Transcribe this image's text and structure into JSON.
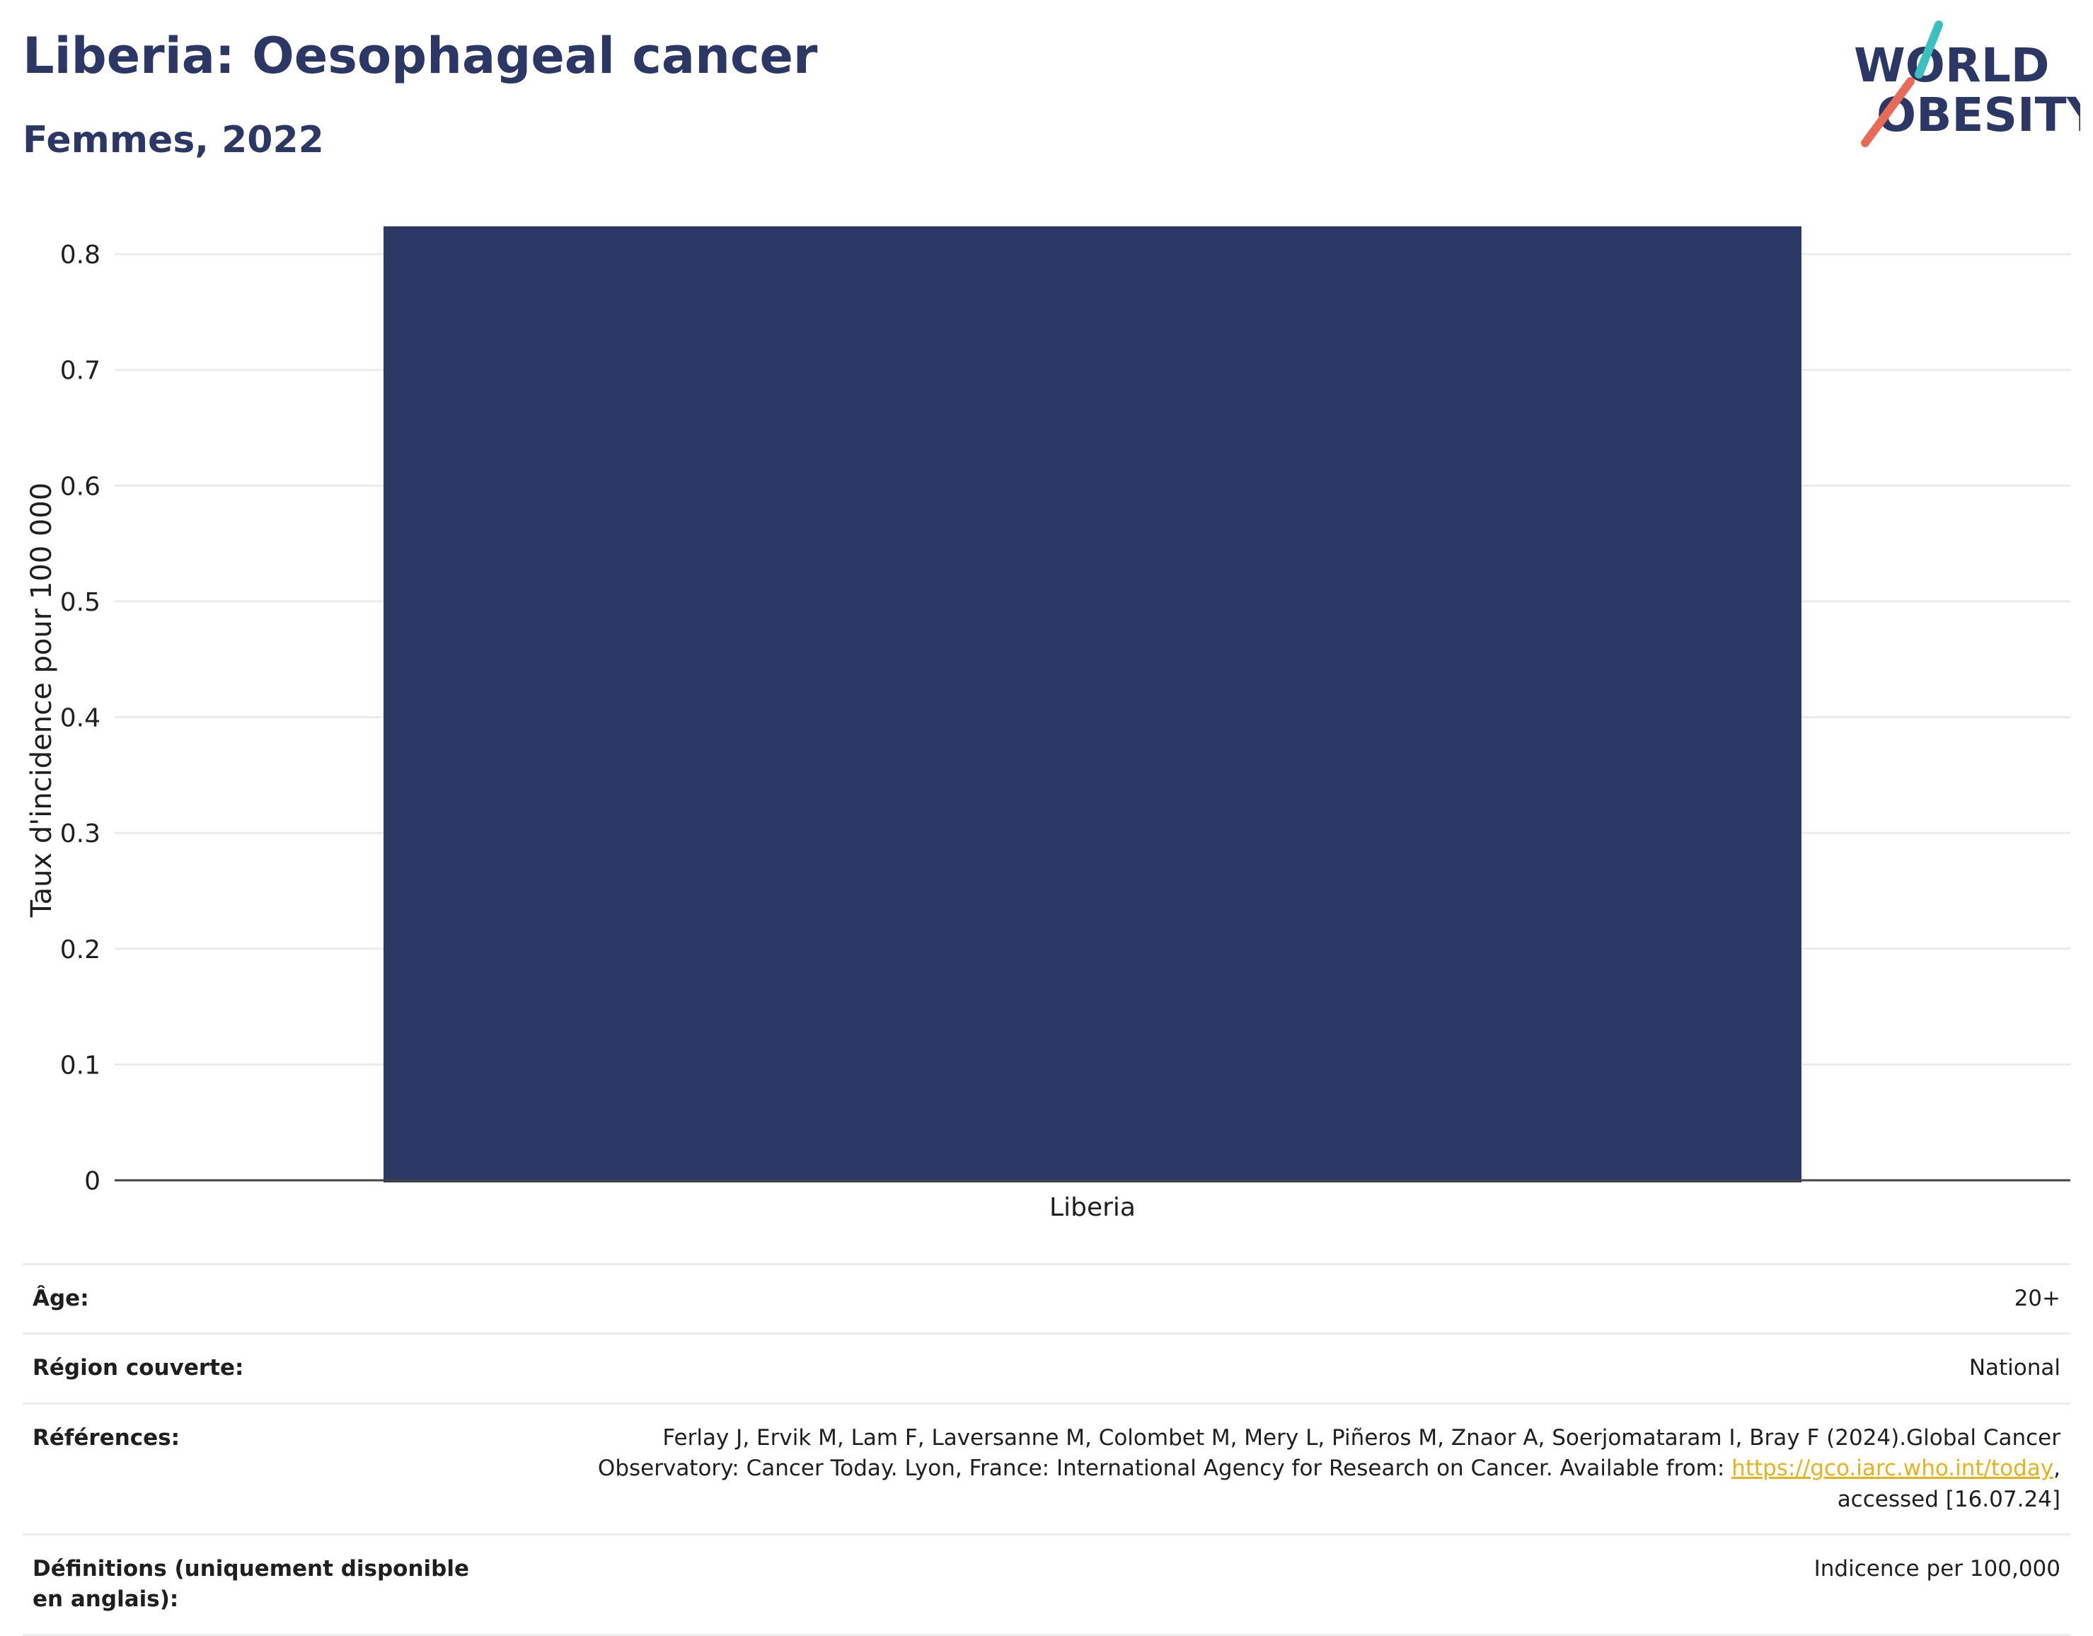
{
  "header": {
    "title": "Liberia: Oesophageal cancer",
    "subtitle": "Femmes, 2022",
    "logo": {
      "line1": "WORLD",
      "line2": "OBESITY",
      "accent_teal": "#3bbfbf",
      "accent_coral": "#ea6a58",
      "text_color": "#2b3764"
    }
  },
  "chart_data": {
    "type": "bar",
    "categories": [
      "Liberia"
    ],
    "values": [
      0.824
    ],
    "ylabel": "Taux d'incidence pour 100 000",
    "xlabel": "",
    "ylim": [
      0,
      0.83
    ],
    "yticks": [
      0,
      0.1,
      0.2,
      0.3,
      0.4,
      0.5,
      0.6,
      0.7,
      0.8
    ],
    "ytick_labels": [
      "0",
      "0.1",
      "0.2",
      "0.3",
      "0.4",
      "0.5",
      "0.6",
      "0.7",
      "0.8"
    ],
    "grid": true,
    "bar_color": "#2b3764"
  },
  "info": {
    "rows": [
      {
        "label": "Âge:",
        "value": "20+"
      },
      {
        "label": "Région couverte:",
        "value": "National"
      },
      {
        "label": "Références:",
        "value_parts": [
          "Ferlay J, Ervik M, Lam F, Laversanne M, Colombet M, Mery L, Piñeros M, Znaor A, Soerjomataram I, Bray F (2024).Global Cancer Observatory: Cancer Today. Lyon, France: International Agency for Research on Cancer. Available from: ",
          "https://gco.iarc.who.int/today",
          ", accessed [16.07.24]"
        ]
      },
      {
        "label": "Définitions (uniquement disponible en anglais):",
        "value": "Indicence per 100,000"
      }
    ]
  }
}
